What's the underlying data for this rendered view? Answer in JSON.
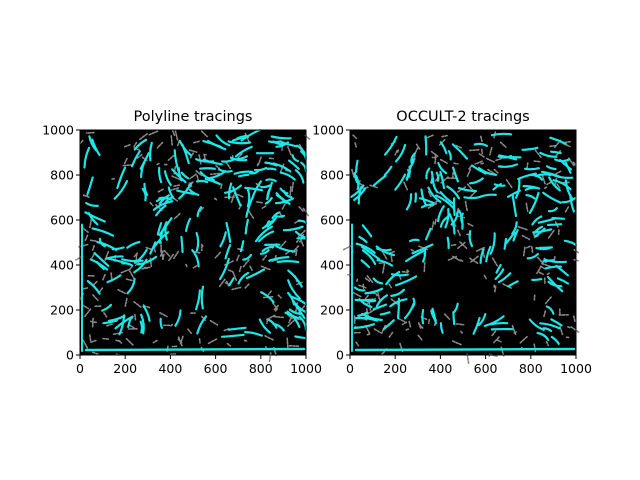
{
  "figure": {
    "background": "#ffffff",
    "image_background": "#000000",
    "gray_color": "#8a8a8a",
    "trace_color": "#1ee6e6"
  },
  "chart_data": [
    {
      "type": "image",
      "title": "Polyline tracings",
      "xlim": [
        0,
        1000
      ],
      "ylim": [
        0,
        1000
      ],
      "xticks": [
        "0",
        "200",
        "400",
        "600",
        "800",
        "1000"
      ],
      "yticks": [
        "0",
        "200",
        "400",
        "600",
        "800",
        "1000"
      ],
      "seed": 17
    },
    {
      "type": "image",
      "title": "OCCULT-2 tracings",
      "xlim": [
        0,
        1000
      ],
      "ylim": [
        0,
        1000
      ],
      "xticks": [
        "0",
        "200",
        "400",
        "600",
        "800",
        "1000"
      ],
      "yticks": [
        "0",
        "200",
        "400",
        "600",
        "800",
        "1000"
      ],
      "seed": 91
    }
  ]
}
